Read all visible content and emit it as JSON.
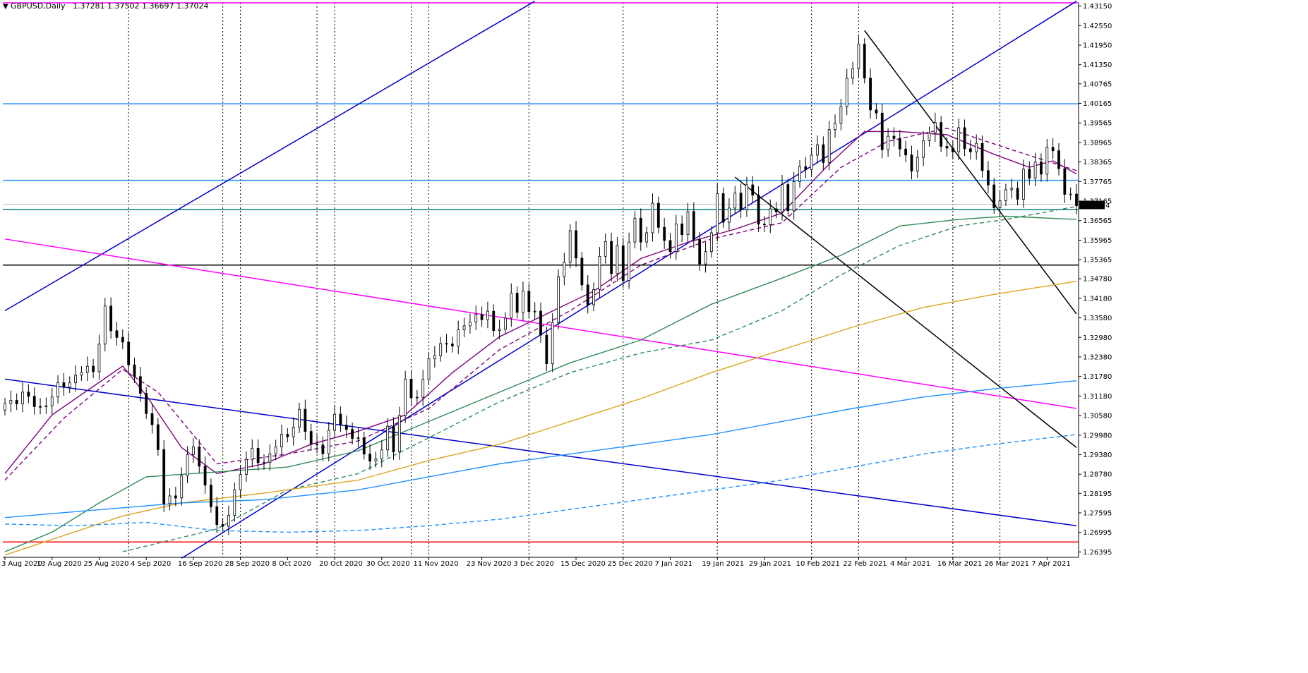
{
  "window": {
    "title": "GBPUSD,Daily",
    "ohlc_readout": "1.37281 1.37502 1.36697 1.37024",
    "menu_arrow_icon": "triangle-down-icon"
  },
  "chart_data": {
    "type": "candlestick",
    "symbol": "GBPUSD",
    "timeframe": "Daily",
    "ylim": [
      1.2623,
      1.4325
    ],
    "y_ticks": [
      "1.43150",
      "1.42550",
      "1.41950",
      "1.41350",
      "1.40765",
      "1.40165",
      "1.39565",
      "1.38965",
      "1.38365",
      "1.37765",
      "1.37165",
      "1.36565",
      "1.35965",
      "1.35365",
      "1.34780",
      "1.34180",
      "1.33580",
      "1.32980",
      "1.32380",
      "1.31780",
      "1.31180",
      "1.30580",
      "1.29980",
      "1.29380",
      "1.28780",
      "1.28195",
      "1.27595",
      "1.26995",
      "1.26395"
    ],
    "x_labels": [
      "3 Aug 2020",
      "13 Aug 2020",
      "25 Aug 2020",
      "4 Sep 2020",
      "16 Sep 2020",
      "28 Sep 2020",
      "8 Oct 2020",
      "20 Oct 2020",
      "30 Oct 2020",
      "11 Nov 2020",
      "23 Nov 2020",
      "3 Dec 2020",
      "15 Dec 2020",
      "25 Dec 2020",
      "7 Jan 2021",
      "19 Jan 2021",
      "29 Jan 2021",
      "10 Feb 2021",
      "22 Feb 2021",
      "4 Mar 2021",
      "16 Mar 2021",
      "26 Mar 2021",
      "7 Apr 2021"
    ],
    "vertical_grid_at_labels": [
      5,
      7,
      9,
      11,
      13,
      15,
      17,
      18,
      20,
      21
    ],
    "current_price": "1.37024",
    "close_path": [
      [
        0,
        1.3095
      ],
      [
        3,
        1.312
      ],
      [
        6,
        1.308
      ],
      [
        9,
        1.314
      ],
      [
        11,
        1.316
      ],
      [
        13,
        1.3205
      ],
      [
        15,
        1.3185
      ],
      [
        17,
        1.339
      ],
      [
        18,
        1.333
      ],
      [
        20,
        1.3265
      ],
      [
        22,
        1.318
      ],
      [
        24,
        1.3075
      ],
      [
        26,
        1.295
      ],
      [
        27,
        1.28
      ],
      [
        29,
        1.2815
      ],
      [
        32,
        1.2975
      ],
      [
        33,
        1.2905
      ],
      [
        35,
        1.2785
      ],
      [
        36,
        1.2705
      ],
      [
        37,
        1.272
      ],
      [
        38,
        1.2765
      ],
      [
        40,
        1.2885
      ],
      [
        42,
        1.2945
      ],
      [
        44,
        1.2915
      ],
      [
        46,
        1.2965
      ],
      [
        48,
        1.3
      ],
      [
        50,
        1.307
      ],
      [
        52,
        1.296
      ],
      [
        54,
        1.296
      ],
      [
        56,
        1.306
      ],
      [
        58,
        1.3
      ],
      [
        60,
        1.3
      ],
      [
        61,
        1.293
      ],
      [
        63,
        1.2915
      ],
      [
        64,
        1.295
      ],
      [
        65,
        1.3045
      ],
      [
        66,
        1.294
      ],
      [
        68,
        1.317
      ],
      [
        69,
        1.31
      ],
      [
        70,
        1.313
      ],
      [
        72,
        1.322
      ],
      [
        74,
        1.327
      ],
      [
        76,
        1.329
      ],
      [
        78,
        1.333
      ],
      [
        80,
        1.336
      ],
      [
        82,
        1.338
      ],
      [
        83,
        1.3305
      ],
      [
        85,
        1.335
      ],
      [
        86,
        1.344
      ],
      [
        87,
        1.339
      ],
      [
        88,
        1.3425
      ],
      [
        89,
        1.3375
      ],
      [
        90,
        1.338
      ],
      [
        91,
        1.33
      ],
      [
        92,
        1.3235
      ],
      [
        93,
        1.334
      ],
      [
        94,
        1.347
      ],
      [
        95,
        1.3535
      ],
      [
        96,
        1.362
      ],
      [
        97,
        1.355
      ],
      [
        98,
        1.347
      ],
      [
        99,
        1.338
      ],
      [
        100,
        1.3445
      ],
      [
        101,
        1.355
      ],
      [
        102,
        1.359
      ],
      [
        103,
        1.351
      ],
      [
        104,
        1.357
      ],
      [
        105,
        1.346
      ],
      [
        106,
        1.36
      ],
      [
        107,
        1.366
      ],
      [
        108,
        1.36
      ],
      [
        109,
        1.3625
      ],
      [
        110,
        1.369
      ],
      [
        111,
        1.364
      ],
      [
        113,
        1.356
      ],
      [
        114,
        1.366
      ],
      [
        115,
        1.36
      ],
      [
        116,
        1.3675
      ],
      [
        117,
        1.361
      ],
      [
        118,
        1.352
      ],
      [
        119,
        1.357
      ],
      [
        120,
        1.362
      ],
      [
        121,
        1.372
      ],
      [
        122,
        1.366
      ],
      [
        123,
        1.37
      ],
      [
        124,
        1.374
      ],
      [
        125,
        1.37
      ],
      [
        126,
        1.375
      ],
      [
        127,
        1.373
      ],
      [
        128,
        1.366
      ],
      [
        129,
        1.364
      ],
      [
        130,
        1.37
      ],
      [
        131,
        1.368
      ],
      [
        132,
        1.375
      ],
      [
        133,
        1.37
      ],
      [
        134,
        1.378
      ],
      [
        135,
        1.382
      ],
      [
        136,
        1.382
      ],
      [
        137,
        1.384
      ],
      [
        138,
        1.389
      ],
      [
        139,
        1.385
      ],
      [
        140,
        1.393
      ],
      [
        141,
        1.396
      ],
      [
        142,
        1.4
      ],
      [
        143,
        1.408
      ],
      [
        144,
        1.414
      ],
      [
        145,
        1.42
      ],
      [
        146,
        1.409
      ],
      [
        147,
        1.4
      ],
      [
        148,
        1.397
      ],
      [
        149,
        1.388
      ],
      [
        150,
        1.393
      ],
      [
        151,
        1.39
      ],
      [
        152,
        1.388
      ],
      [
        153,
        1.385
      ],
      [
        154,
        1.38
      ],
      [
        155,
        1.387
      ],
      [
        156,
        1.39
      ],
      [
        157,
        1.392
      ],
      [
        158,
        1.396
      ],
      [
        159,
        1.387
      ],
      [
        160,
        1.389
      ],
      [
        161,
        1.388
      ],
      [
        162,
        1.393
      ],
      [
        163,
        1.388
      ],
      [
        164,
        1.386
      ],
      [
        165,
        1.389
      ],
      [
        166,
        1.383
      ],
      [
        167,
        1.376
      ],
      [
        168,
        1.369
      ],
      [
        169,
        1.372
      ],
      [
        170,
        1.374
      ],
      [
        171,
        1.377
      ],
      [
        172,
        1.373
      ],
      [
        173,
        1.38
      ],
      [
        174,
        1.379
      ],
      [
        175,
        1.383
      ],
      [
        176,
        1.38
      ],
      [
        177,
        1.39
      ],
      [
        178,
        1.386
      ],
      [
        179,
        1.381
      ],
      [
        180,
        1.374
      ],
      [
        181,
        1.373
      ],
      [
        182,
        1.3702
      ]
    ],
    "levels": [
      {
        "price": 1.4325,
        "color": "#ff00ff"
      },
      {
        "price": 1.4015,
        "color": "#1e90ff"
      },
      {
        "price": 1.378,
        "color": "#1e90ff"
      },
      {
        "price": 1.369,
        "color": "#008080"
      },
      {
        "price": 1.352,
        "color": "#000000"
      },
      {
        "price": 1.267,
        "color": "#ff0000"
      }
    ],
    "trendlines": [
      {
        "from": [
          0,
          1.338
        ],
        "to": [
          90,
          1.433
        ],
        "color": "#0000cc"
      },
      {
        "from": [
          30,
          1.262
        ],
        "to": [
          182,
          1.433
        ],
        "color": "#0000cc"
      },
      {
        "from": [
          0,
          1.317
        ],
        "to": [
          182,
          1.272
        ],
        "color": "#0000cc"
      },
      {
        "from": [
          0,
          1.36
        ],
        "to": [
          182,
          1.308
        ],
        "color": "#ff00ff"
      },
      {
        "from": [
          146,
          1.424
        ],
        "to": [
          182,
          1.337
        ],
        "color": "#000000"
      },
      {
        "from": [
          124,
          1.379
        ],
        "to": [
          182,
          1.296
        ],
        "color": "#000000"
      }
    ],
    "moving_averages": [
      {
        "color": "#800080",
        "dashed": false,
        "values": [
          [
            0,
            1.288
          ],
          [
            8,
            1.306
          ],
          [
            16,
            1.316
          ],
          [
            20,
            1.321
          ],
          [
            24,
            1.312
          ],
          [
            30,
            1.296
          ],
          [
            36,
            1.288
          ],
          [
            44,
            1.291
          ],
          [
            52,
            1.297
          ],
          [
            60,
            1.301
          ],
          [
            68,
            1.306
          ],
          [
            76,
            1.319
          ],
          [
            84,
            1.33
          ],
          [
            92,
            1.337
          ],
          [
            100,
            1.344
          ],
          [
            108,
            1.354
          ],
          [
            116,
            1.359
          ],
          [
            124,
            1.363
          ],
          [
            132,
            1.368
          ],
          [
            140,
            1.383
          ],
          [
            146,
            1.393
          ],
          [
            152,
            1.393
          ],
          [
            160,
            1.392
          ],
          [
            168,
            1.386
          ],
          [
            174,
            1.382
          ],
          [
            178,
            1.384
          ],
          [
            182,
            1.38
          ]
        ]
      },
      {
        "color": "#800080",
        "dashed": true,
        "values": [
          [
            0,
            1.286
          ],
          [
            10,
            1.305
          ],
          [
            20,
            1.32
          ],
          [
            26,
            1.313
          ],
          [
            36,
            1.291
          ],
          [
            48,
            1.294
          ],
          [
            60,
            1.298
          ],
          [
            72,
            1.308
          ],
          [
            84,
            1.326
          ],
          [
            96,
            1.338
          ],
          [
            108,
            1.352
          ],
          [
            120,
            1.36
          ],
          [
            132,
            1.365
          ],
          [
            142,
            1.382
          ],
          [
            150,
            1.39
          ],
          [
            160,
            1.394
          ],
          [
            170,
            1.388
          ],
          [
            182,
            1.381
          ]
        ]
      },
      {
        "color": "#2e8b57",
        "dashed": false,
        "values": [
          [
            0,
            1.264
          ],
          [
            8,
            1.27
          ],
          [
            16,
            1.279
          ],
          [
            24,
            1.287
          ],
          [
            32,
            1.288
          ],
          [
            48,
            1.29
          ],
          [
            60,
            1.295
          ],
          [
            72,
            1.304
          ],
          [
            84,
            1.313
          ],
          [
            96,
            1.322
          ],
          [
            108,
            1.329
          ],
          [
            120,
            1.34
          ],
          [
            132,
            1.348
          ],
          [
            142,
            1.355
          ],
          [
            152,
            1.364
          ],
          [
            162,
            1.366
          ],
          [
            170,
            1.367
          ],
          [
            182,
            1.366
          ]
        ]
      },
      {
        "color": "#2e8b57",
        "dashed": true,
        "values": [
          [
            20,
            1.264
          ],
          [
            36,
            1.271
          ],
          [
            48,
            1.283
          ],
          [
            60,
            1.288
          ],
          [
            72,
            1.299
          ],
          [
            84,
            1.31
          ],
          [
            96,
            1.319
          ],
          [
            108,
            1.325
          ],
          [
            120,
            1.329
          ],
          [
            132,
            1.338
          ],
          [
            142,
            1.349
          ],
          [
            152,
            1.358
          ],
          [
            162,
            1.364
          ],
          [
            170,
            1.366
          ],
          [
            182,
            1.37
          ]
        ]
      },
      {
        "color": "#daa520",
        "dashed": false,
        "values": [
          [
            0,
            1.263
          ],
          [
            10,
            1.269
          ],
          [
            20,
            1.275
          ],
          [
            30,
            1.279
          ],
          [
            44,
            1.282
          ],
          [
            60,
            1.286
          ],
          [
            72,
            1.292
          ],
          [
            84,
            1.297
          ],
          [
            96,
            1.304
          ],
          [
            108,
            1.311
          ],
          [
            120,
            1.319
          ],
          [
            132,
            1.326
          ],
          [
            144,
            1.333
          ],
          [
            156,
            1.339
          ],
          [
            168,
            1.343
          ],
          [
            182,
            1.347
          ]
        ]
      },
      {
        "color": "#1e90ff",
        "dashed": false,
        "values": [
          [
            0,
            1.2745
          ],
          [
            10,
            1.276
          ],
          [
            20,
            1.2775
          ],
          [
            30,
            1.279
          ],
          [
            44,
            1.28
          ],
          [
            60,
            1.283
          ],
          [
            72,
            1.287
          ],
          [
            84,
            1.291
          ],
          [
            96,
            1.294
          ],
          [
            108,
            1.297
          ],
          [
            120,
            1.3
          ],
          [
            132,
            1.304
          ],
          [
            144,
            1.308
          ],
          [
            156,
            1.3115
          ],
          [
            168,
            1.314
          ],
          [
            182,
            1.3165
          ]
        ]
      },
      {
        "color": "#1e90ff",
        "dashed": true,
        "values": [
          [
            0,
            1.2725
          ],
          [
            12,
            1.272
          ],
          [
            24,
            1.273
          ],
          [
            36,
            1.2705
          ],
          [
            48,
            1.27
          ],
          [
            60,
            1.2705
          ],
          [
            72,
            1.272
          ],
          [
            84,
            1.274
          ],
          [
            96,
            1.277
          ],
          [
            108,
            1.28
          ],
          [
            120,
            1.283
          ],
          [
            132,
            1.286
          ],
          [
            144,
            1.29
          ],
          [
            156,
            1.294
          ],
          [
            168,
            1.297
          ],
          [
            182,
            1.3
          ]
        ]
      }
    ]
  }
}
